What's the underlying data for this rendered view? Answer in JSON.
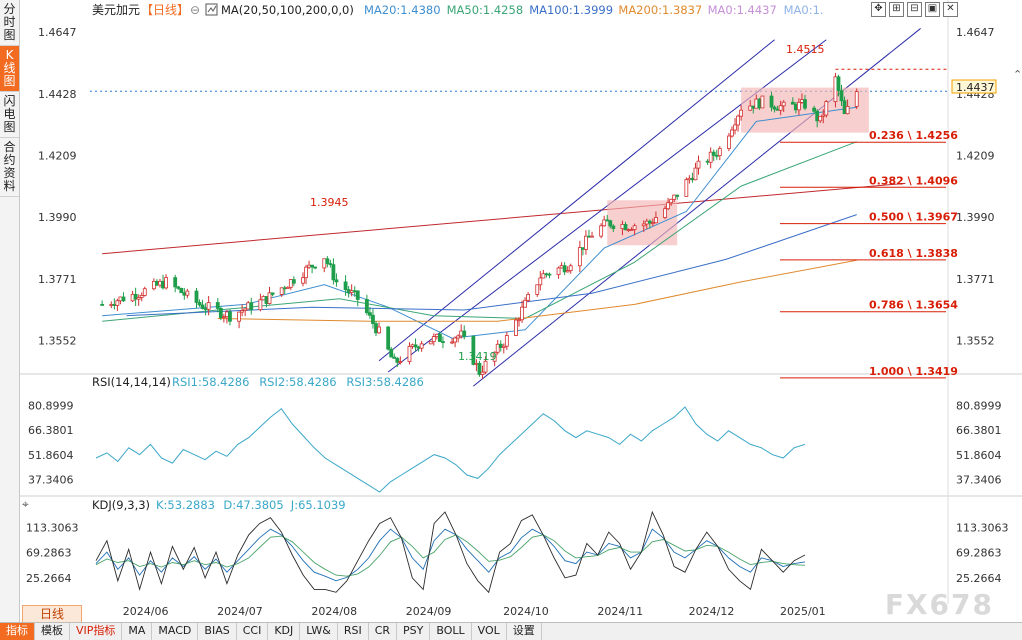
{
  "sidebar": {
    "tabs": [
      {
        "label": "分时图",
        "active": false
      },
      {
        "label": "K线图",
        "active": true
      },
      {
        "label": "闪电图",
        "active": false
      },
      {
        "label": "合约资料",
        "active": false
      }
    ]
  },
  "header": {
    "symbol": "美元加元",
    "period_label": "【日线】",
    "ma_label": "MA(20,50,100,200,0,0)",
    "ma_values": [
      {
        "text": "MA20:1.4380",
        "color": "#3e8ed0"
      },
      {
        "text": "MA50:1.4258",
        "color": "#3aa676"
      },
      {
        "text": "MA100:1.3999",
        "color": "#3a6fc7"
      },
      {
        "text": "MA200:1.3837",
        "color": "#e08a2e"
      },
      {
        "text": "MA0:1.4437",
        "color": "#c58fd6"
      },
      {
        "text": "MA0:1.",
        "color": "#8fb3e8"
      }
    ]
  },
  "price_axis": {
    "ticks": [
      "1.4647",
      "1.4428",
      "1.4209",
      "1.3990",
      "1.3771",
      "1.3552"
    ],
    "current": "1.4437"
  },
  "annotations": {
    "high": "1.4515",
    "swing_high": "1.3945",
    "low": "1.3419"
  },
  "fib_levels": [
    "0.236 \\ 1.4256",
    "0.382 \\ 1.4096",
    "0.500 \\ 1.3967",
    "0.618 \\ 1.3838",
    "0.786 \\ 1.3654",
    "1.000 \\ 1.3419"
  ],
  "rsi": {
    "label": "RSI(14,14,14)",
    "values": [
      {
        "text": "RSI1:58.4286",
        "color": "#3aa8c8"
      },
      {
        "text": "RSI2:58.4286",
        "color": "#3aa8c8"
      },
      {
        "text": "RSI3:58.4286",
        "color": "#3aa8c8"
      }
    ],
    "ticks": [
      "80.8999",
      "66.3801",
      "51.8604",
      "37.3406"
    ]
  },
  "kdj": {
    "label": "KDJ(9,3,3)",
    "values": [
      {
        "text": "K:53.2883",
        "color": "#3aa8c8"
      },
      {
        "text": "D:47.3805",
        "color": "#3aa8c8"
      },
      {
        "text": "J:65.1039",
        "color": "#3aa8c8"
      }
    ],
    "ticks": [
      "113.3063",
      "69.2863",
      "25.2664"
    ]
  },
  "time_axis": [
    "2024/06",
    "2024/07",
    "2024/08",
    "2024/09",
    "2024/10",
    "2024/11",
    "2024/12",
    "2025/01"
  ],
  "period_tab": "日线",
  "bottom_bar": [
    "指标",
    "模板",
    "VIP指标",
    "MA",
    "MACD",
    "BIAS",
    "CCI",
    "KDJ",
    "LW&",
    "RSI",
    "CR",
    "PSY",
    "BOLL",
    "VOL",
    "设置"
  ],
  "watermark": "FX678",
  "colors": {
    "up": "#d32f2f",
    "down": "#1e9e4a",
    "accent": "#f26b21"
  },
  "chart_data": {
    "type": "candlestick",
    "ylim": [
      1.344,
      1.469
    ],
    "anchors": [
      {
        "d": "2024-05-24",
        "p": 1.368
      },
      {
        "d": "2024-06-05",
        "p": 1.372
      },
      {
        "d": "2024-06-14",
        "p": 1.376
      },
      {
        "d": "2024-06-25",
        "p": 1.368
      },
      {
        "d": "2024-07-05",
        "p": 1.364
      },
      {
        "d": "2024-07-17",
        "p": 1.37
      },
      {
        "d": "2024-08-05",
        "p": 1.385
      },
      {
        "d": "2024-08-09",
        "p": 1.376
      },
      {
        "d": "2024-08-16",
        "p": 1.37
      },
      {
        "d": "2024-08-23",
        "p": 1.358
      },
      {
        "d": "2024-08-28",
        "p": 1.347
      },
      {
        "d": "2024-09-06",
        "p": 1.355
      },
      {
        "d": "2024-09-19",
        "p": 1.357
      },
      {
        "d": "2024-09-25",
        "p": 1.344
      },
      {
        "d": "2024-10-04",
        "p": 1.356
      },
      {
        "d": "2024-10-15",
        "p": 1.378
      },
      {
        "d": "2024-10-24",
        "p": 1.382
      },
      {
        "d": "2024-11-01",
        "p": 1.393
      },
      {
        "d": "2024-11-06",
        "p": 1.397
      },
      {
        "d": "2024-11-13",
        "p": 1.396
      },
      {
        "d": "2024-11-20",
        "p": 1.397
      },
      {
        "d": "2024-11-26",
        "p": 1.403
      },
      {
        "d": "2024-12-06",
        "p": 1.417
      },
      {
        "d": "2024-12-13",
        "p": 1.423
      },
      {
        "d": "2024-12-20",
        "p": 1.438
      },
      {
        "d": "2024-12-27",
        "p": 1.44
      },
      {
        "d": "2025-01-03",
        "p": 1.438
      },
      {
        "d": "2025-01-10",
        "p": 1.439
      },
      {
        "d": "2025-01-15",
        "p": 1.433
      },
      {
        "d": "2025-01-20",
        "p": 1.448
      },
      {
        "d": "2025-01-23",
        "p": 1.435
      },
      {
        "d": "2025-01-27",
        "p": 1.4437
      }
    ],
    "ma_lines": [
      {
        "name": "MA20",
        "color": "#3e8ed0",
        "points": [
          [
            "2024-05-24",
            1.364
          ],
          [
            "2024-07-10",
            1.368
          ],
          [
            "2024-08-05",
            1.375
          ],
          [
            "2024-08-26",
            1.367
          ],
          [
            "2024-09-16",
            1.356
          ],
          [
            "2024-10-10",
            1.359
          ],
          [
            "2024-11-05",
            1.388
          ],
          [
            "2024-12-02",
            1.401
          ],
          [
            "2024-12-25",
            1.433
          ],
          [
            "2025-01-27",
            1.438
          ]
        ]
      },
      {
        "name": "MA50",
        "color": "#3aa676",
        "points": [
          [
            "2024-05-24",
            1.362
          ],
          [
            "2024-07-01",
            1.366
          ],
          [
            "2024-08-10",
            1.37
          ],
          [
            "2024-09-10",
            1.364
          ],
          [
            "2024-10-10",
            1.363
          ],
          [
            "2024-11-15",
            1.383
          ],
          [
            "2024-12-20",
            1.41
          ],
          [
            "2025-01-27",
            1.4258
          ]
        ]
      },
      {
        "name": "MA100",
        "color": "#3a6fc7",
        "points": [
          [
            "2024-06-01",
            1.364
          ],
          [
            "2024-08-01",
            1.367
          ],
          [
            "2024-09-20",
            1.366
          ],
          [
            "2024-11-01",
            1.372
          ],
          [
            "2024-12-15",
            1.384
          ],
          [
            "2025-01-27",
            1.3999
          ]
        ]
      },
      {
        "name": "MA200",
        "color": "#e08a2e",
        "points": [
          [
            "2024-07-01",
            1.363
          ],
          [
            "2024-08-20",
            1.362
          ],
          [
            "2024-10-01",
            1.362
          ],
          [
            "2024-11-15",
            1.368
          ],
          [
            "2024-12-20",
            1.376
          ],
          [
            "2025-01-27",
            1.3837
          ]
        ]
      }
    ],
    "trend_lines": [
      {
        "color": "#c0282d",
        "from": [
          "2024-05-24",
          1.386
        ],
        "to": [
          "2025-02-12",
          1.411
        ]
      },
      {
        "color": "#2a2aa8",
        "from": [
          "2024-08-23",
          1.348
        ],
        "to": [
          "2024-12-31",
          1.462
        ]
      },
      {
        "color": "#2a2aa8",
        "from": [
          "2024-08-26",
          1.344
        ],
        "to": [
          "2025-01-17",
          1.462
        ]
      },
      {
        "color": "#2a2aa8",
        "from": [
          "2024-09-23",
          1.339
        ],
        "to": [
          "2025-02-17",
          1.466
        ]
      }
    ],
    "zones": [
      {
        "from": [
          "2024-12-20",
          1.445
        ],
        "to": [
          "2025-01-31",
          1.429
        ],
        "color": "#f4b6b6"
      },
      {
        "from": [
          "2024-11-06",
          1.405
        ],
        "to": [
          "2024-11-29",
          1.389
        ],
        "color": "#f4b6b6"
      }
    ],
    "rsi": [
      50,
      53,
      48,
      56,
      52,
      58,
      50,
      47,
      55,
      52,
      49,
      54,
      51,
      58,
      62,
      68,
      74,
      79,
      70,
      63,
      56,
      50,
      46,
      42,
      38,
      34,
      30,
      36,
      40,
      44,
      48,
      52,
      50,
      46,
      40,
      38,
      44,
      52,
      58,
      64,
      70,
      76,
      72,
      66,
      62,
      66,
      64,
      62,
      58,
      64,
      60,
      66,
      70,
      74,
      80,
      70,
      64,
      60,
      66,
      62,
      58,
      56,
      52,
      50,
      56,
      58
    ],
    "rsi_ylim": [
      30,
      90
    ],
    "kdj": {
      "k": [
        50,
        70,
        40,
        60,
        30,
        55,
        35,
        60,
        45,
        62,
        40,
        58,
        35,
        55,
        75,
        95,
        110,
        100,
        80,
        55,
        35,
        28,
        20,
        26,
        40,
        60,
        90,
        110,
        95,
        60,
        40,
        90,
        110,
        100,
        75,
        55,
        35,
        60,
        70,
        95,
        110,
        100,
        80,
        55,
        50,
        70,
        65,
        85,
        80,
        60,
        70,
        110,
        95,
        70,
        60,
        75,
        90,
        80,
        60,
        45,
        35,
        60,
        55,
        45,
        50,
        53
      ],
      "d": [
        48,
        58,
        52,
        55,
        45,
        50,
        44,
        52,
        48,
        55,
        48,
        52,
        44,
        50,
        60,
        78,
        96,
        98,
        88,
        70,
        52,
        40,
        30,
        28,
        32,
        44,
        64,
        88,
        96,
        80,
        60,
        70,
        92,
        100,
        88,
        72,
        54,
        56,
        62,
        78,
        96,
        100,
        90,
        72,
        60,
        62,
        64,
        74,
        78,
        70,
        70,
        88,
        92,
        82,
        72,
        74,
        82,
        80,
        70,
        58,
        48,
        52,
        54,
        50,
        48,
        47
      ],
      "j": [
        55,
        90,
        20,
        75,
        5,
        70,
        15,
        80,
        40,
        78,
        25,
        70,
        15,
        65,
        100,
        120,
        130,
        105,
        65,
        30,
        5,
        5,
        0,
        20,
        55,
        90,
        120,
        130,
        95,
        25,
        5,
        120,
        140,
        100,
        50,
        20,
        0,
        70,
        85,
        125,
        135,
        100,
        60,
        25,
        30,
        85,
        65,
        105,
        85,
        40,
        70,
        140,
        100,
        45,
        35,
        75,
        105,
        80,
        40,
        20,
        5,
        75,
        55,
        35,
        55,
        65
      ],
      "ylim": [
        -10,
        140
      ]
    }
  }
}
